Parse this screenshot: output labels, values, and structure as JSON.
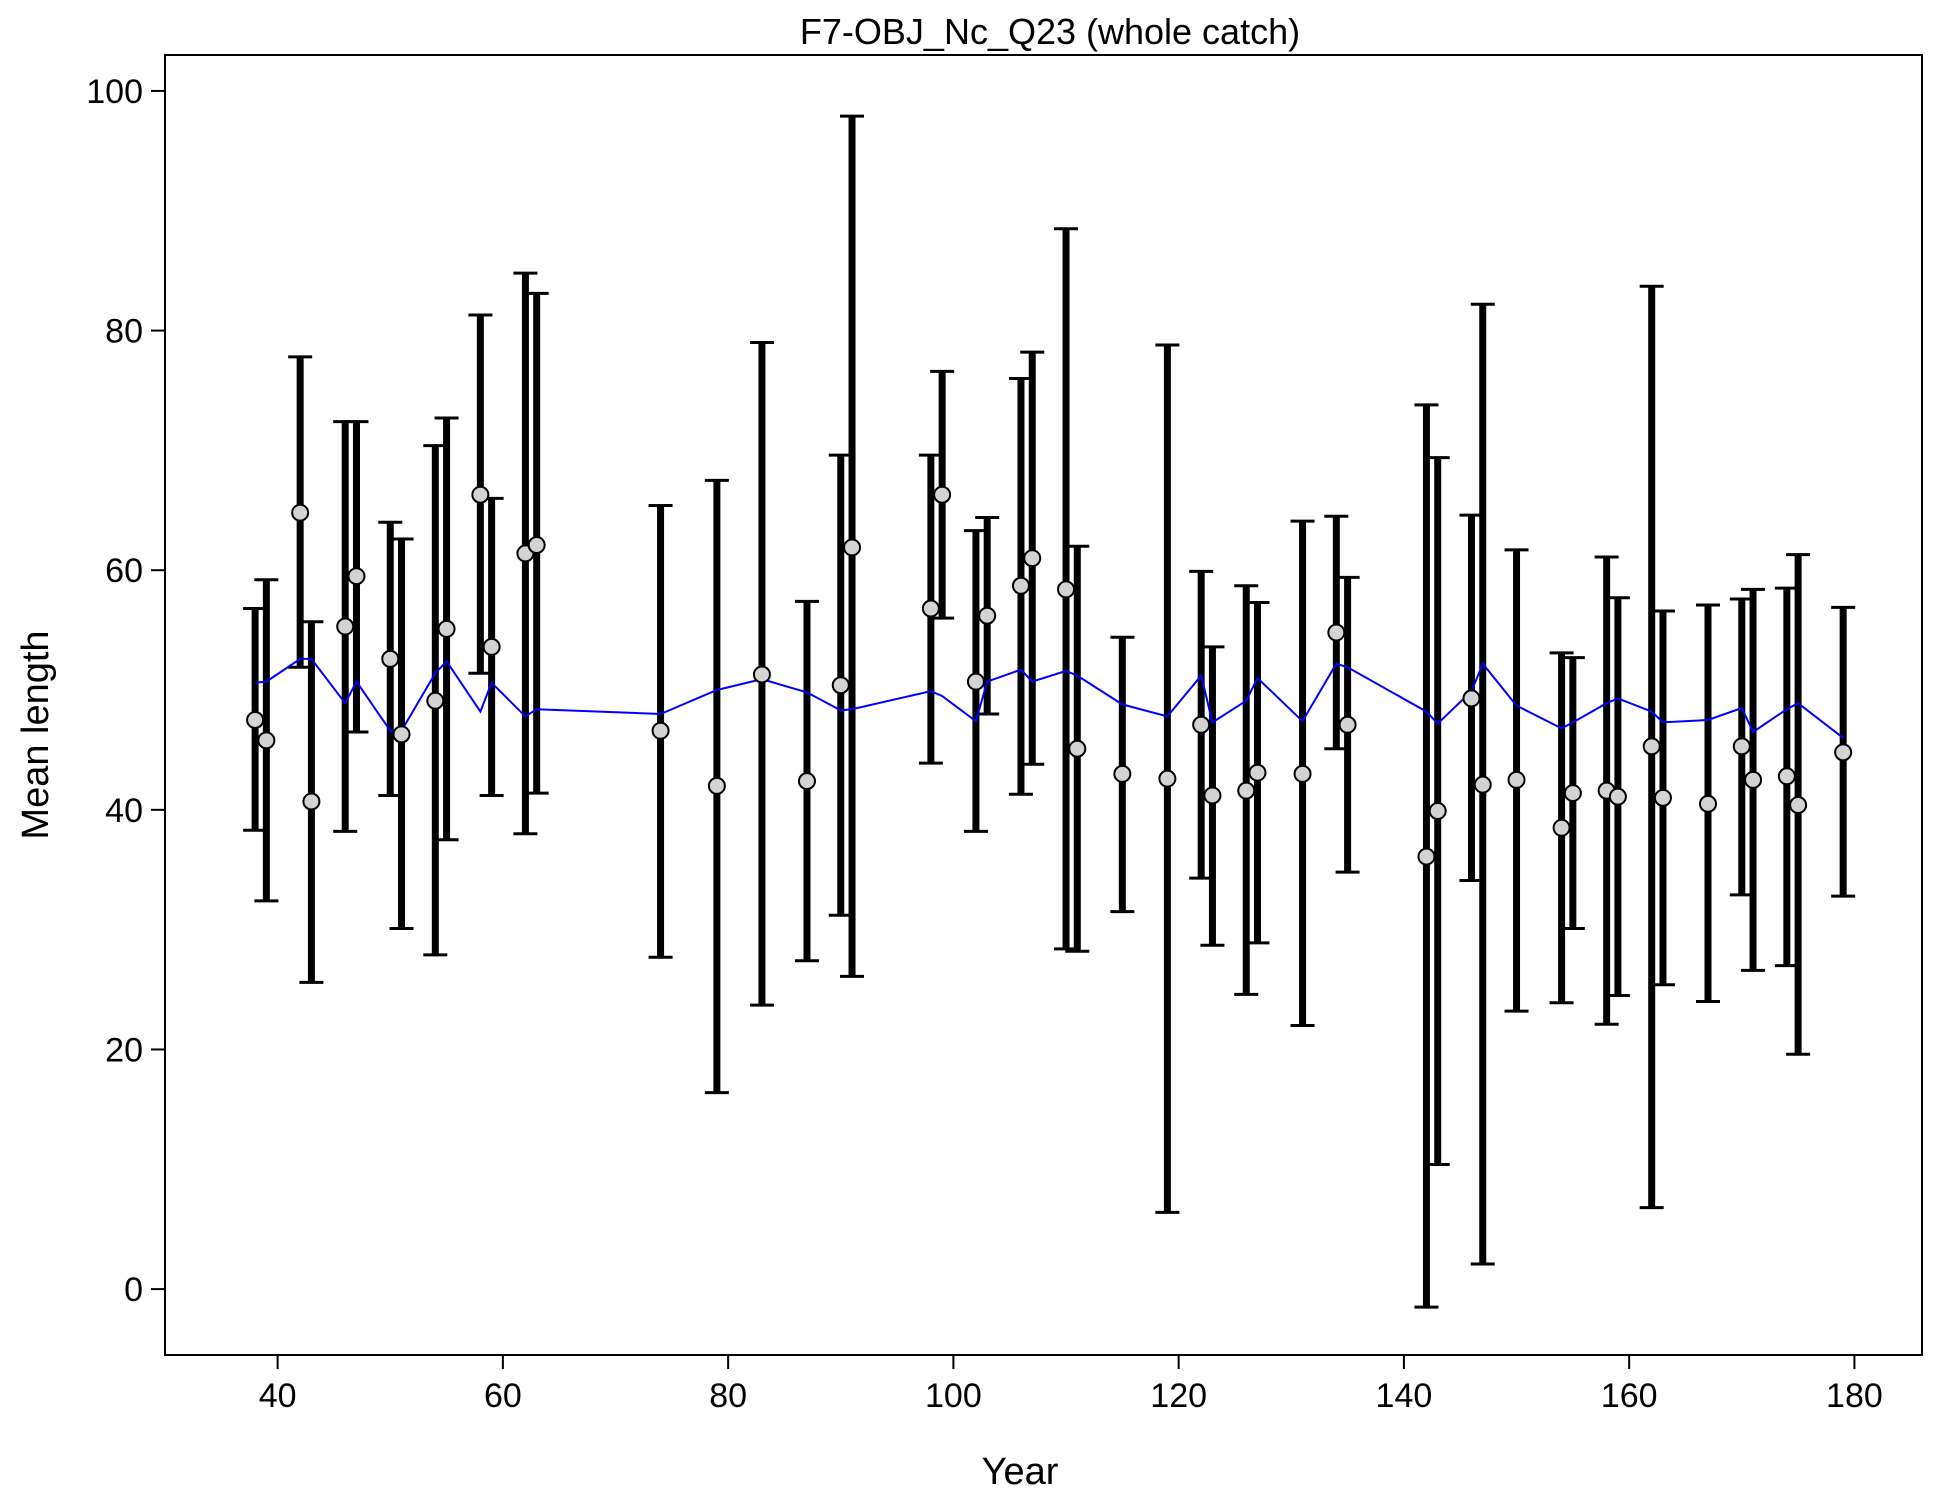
{
  "chart_data": {
    "type": "scatter",
    "title": "F7-OBJ_Nc_Q23 (whole catch)",
    "xlabel": "Year",
    "ylabel": "Mean length",
    "xlim": [
      30,
      186
    ],
    "ylim": [
      -5.5,
      103
    ],
    "x_ticks": [
      40,
      60,
      80,
      100,
      120,
      140,
      160,
      180
    ],
    "y_ticks": [
      0,
      20,
      40,
      60,
      80,
      100
    ],
    "grid": false,
    "legend": "none",
    "colors": {
      "errorbar": "#000000",
      "point_fill": "#d3d3d3",
      "point_stroke": "#000000",
      "expected_line": "#0000ff"
    },
    "series": [
      {
        "marker": "circle",
        "points": [
          {
            "x": 38,
            "y": 47.5,
            "lo": 38.3,
            "hi": 56.8,
            "exp": 50.6
          },
          {
            "x": 39,
            "y": 45.8,
            "lo": 32.4,
            "hi": 59.2,
            "exp": 50.7
          },
          {
            "x": 42,
            "y": 64.8,
            "lo": 51.9,
            "hi": 77.8,
            "exp": 52.6
          },
          {
            "x": 43,
            "y": 40.7,
            "lo": 25.6,
            "hi": 55.7,
            "exp": 52.6
          },
          {
            "x": 46,
            "y": 55.3,
            "lo": 38.2,
            "hi": 72.4,
            "exp": 48.9
          },
          {
            "x": 47,
            "y": 59.5,
            "lo": 46.5,
            "hi": 72.4,
            "exp": 50.7
          },
          {
            "x": 50,
            "y": 52.6,
            "lo": 41.2,
            "hi": 64.0,
            "exp": 46.6
          },
          {
            "x": 51,
            "y": 46.3,
            "lo": 30.1,
            "hi": 62.6,
            "exp": 46.6
          },
          {
            "x": 54,
            "y": 49.1,
            "lo": 27.9,
            "hi": 70.4,
            "exp": 51.4
          },
          {
            "x": 55,
            "y": 55.1,
            "lo": 37.5,
            "hi": 72.7,
            "exp": 52.4
          },
          {
            "x": 58,
            "y": 66.3,
            "lo": 51.4,
            "hi": 81.3,
            "exp": 48.2
          },
          {
            "x": 59,
            "y": 53.6,
            "lo": 41.2,
            "hi": 66.0,
            "exp": 50.6
          },
          {
            "x": 62,
            "y": 61.4,
            "lo": 38.0,
            "hi": 84.8,
            "exp": 47.8
          },
          {
            "x": 63,
            "y": 62.1,
            "lo": 41.4,
            "hi": 83.1,
            "exp": 48.4
          },
          {
            "x": 74,
            "y": 46.6,
            "lo": 27.7,
            "hi": 65.4,
            "exp": 48.0
          },
          {
            "x": 79,
            "y": 42.0,
            "lo": 16.4,
            "hi": 67.5,
            "exp": 50.0
          },
          {
            "x": 83,
            "y": 51.3,
            "lo": 23.7,
            "hi": 79.0,
            "exp": 50.9
          },
          {
            "x": 87,
            "y": 42.4,
            "lo": 27.4,
            "hi": 57.4,
            "exp": 49.8
          },
          {
            "x": 90,
            "y": 50.4,
            "lo": 31.2,
            "hi": 69.6,
            "exp": 48.3
          },
          {
            "x": 91,
            "y": 61.9,
            "lo": 26.1,
            "hi": 97.9,
            "exp": 48.4
          },
          {
            "x": 98,
            "y": 56.8,
            "lo": 43.9,
            "hi": 69.6,
            "exp": 49.9
          },
          {
            "x": 99,
            "y": 66.3,
            "lo": 56.0,
            "hi": 76.6,
            "exp": 49.5
          },
          {
            "x": 102,
            "y": 50.7,
            "lo": 38.2,
            "hi": 63.3,
            "exp": 47.4
          },
          {
            "x": 103,
            "y": 56.2,
            "lo": 48.0,
            "hi": 64.4,
            "exp": 50.7
          },
          {
            "x": 106,
            "y": 58.7,
            "lo": 41.3,
            "hi": 76.0,
            "exp": 51.7
          },
          {
            "x": 107,
            "y": 61.0,
            "lo": 43.8,
            "hi": 78.2,
            "exp": 50.7
          },
          {
            "x": 110,
            "y": 58.4,
            "lo": 28.4,
            "hi": 88.5,
            "exp": 51.6
          },
          {
            "x": 111,
            "y": 45.1,
            "lo": 28.2,
            "hi": 62.0,
            "exp": 51.2
          },
          {
            "x": 115,
            "y": 43.0,
            "lo": 31.5,
            "hi": 54.4,
            "exp": 48.8
          },
          {
            "x": 119,
            "y": 42.6,
            "lo": 6.4,
            "hi": 78.8,
            "exp": 47.8
          },
          {
            "x": 122,
            "y": 47.1,
            "lo": 34.3,
            "hi": 59.9,
            "exp": 51.2
          },
          {
            "x": 123,
            "y": 41.2,
            "lo": 28.7,
            "hi": 53.6,
            "exp": 47.3
          },
          {
            "x": 126,
            "y": 41.6,
            "lo": 24.6,
            "hi": 58.7,
            "exp": 49.1
          },
          {
            "x": 127,
            "y": 43.1,
            "lo": 28.9,
            "hi": 57.3,
            "exp": 51.0
          },
          {
            "x": 131,
            "y": 43.0,
            "lo": 22.0,
            "hi": 64.1,
            "exp": 47.4
          },
          {
            "x": 134,
            "y": 54.8,
            "lo": 45.1,
            "hi": 64.5,
            "exp": 52.2
          },
          {
            "x": 135,
            "y": 47.1,
            "lo": 34.8,
            "hi": 59.4,
            "exp": 51.9
          },
          {
            "x": 142,
            "y": 36.1,
            "lo": -1.5,
            "hi": 73.8,
            "exp": 48.2
          },
          {
            "x": 143,
            "y": 39.9,
            "lo": 10.4,
            "hi": 69.4,
            "exp": 47.2
          },
          {
            "x": 146,
            "y": 49.3,
            "lo": 34.1,
            "hi": 64.6,
            "exp": 49.9
          },
          {
            "x": 147,
            "y": 42.1,
            "lo": 2.1,
            "hi": 82.2,
            "exp": 52.2
          },
          {
            "x": 150,
            "y": 42.5,
            "lo": 23.2,
            "hi": 61.7,
            "exp": 48.7
          },
          {
            "x": 154,
            "y": 38.5,
            "lo": 23.9,
            "hi": 53.1,
            "exp": 46.8
          },
          {
            "x": 155,
            "y": 41.4,
            "lo": 30.1,
            "hi": 52.7,
            "exp": 47.3
          },
          {
            "x": 158,
            "y": 41.6,
            "lo": 22.1,
            "hi": 61.1,
            "exp": 48.9
          },
          {
            "x": 159,
            "y": 41.1,
            "lo": 24.5,
            "hi": 57.7,
            "exp": 49.3
          },
          {
            "x": 162,
            "y": 45.3,
            "lo": 6.8,
            "hi": 83.7,
            "exp": 48.2
          },
          {
            "x": 163,
            "y": 41.0,
            "lo": 25.4,
            "hi": 56.6,
            "exp": 47.3
          },
          {
            "x": 167,
            "y": 40.5,
            "lo": 24.0,
            "hi": 57.1,
            "exp": 47.5
          },
          {
            "x": 170,
            "y": 45.3,
            "lo": 32.9,
            "hi": 57.6,
            "exp": 48.5
          },
          {
            "x": 171,
            "y": 42.5,
            "lo": 26.6,
            "hi": 58.4,
            "exp": 46.5
          },
          {
            "x": 174,
            "y": 42.8,
            "lo": 27.0,
            "hi": 58.5,
            "exp": 48.4
          },
          {
            "x": 175,
            "y": 40.4,
            "lo": 19.6,
            "hi": 61.3,
            "exp": 48.9
          },
          {
            "x": 179,
            "y": 44.8,
            "lo": 32.8,
            "hi": 56.9,
            "exp": 46.0
          }
        ]
      }
    ]
  }
}
